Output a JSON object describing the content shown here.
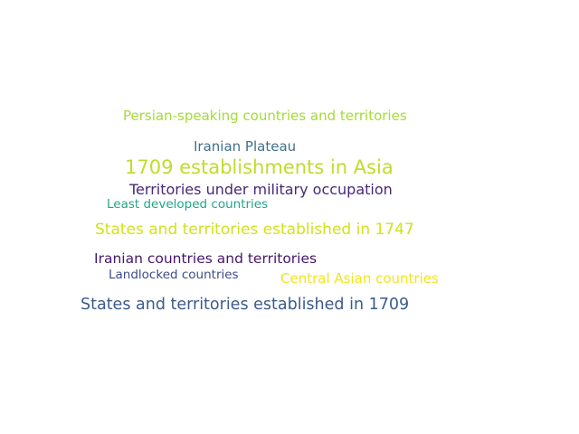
{
  "words": [
    {
      "text": "Persian-speaking countries and territories",
      "color": "#a5db36"
    },
    {
      "text": "Iranian Plateau",
      "color": "#3e6f8e"
    },
    {
      "text": "1709 establishments in Asia",
      "color": "#bfdd2b"
    },
    {
      "text": "Territories under military occupation",
      "color": "#482878"
    },
    {
      "text": "Least developed countries",
      "color": "#21a685"
    },
    {
      "text": "States and territories established in 1747",
      "color": "#d2e21b"
    },
    {
      "text": "Iranian countries and territories",
      "color": "#46166b"
    },
    {
      "text": "Landlocked countries",
      "color": "#3e4a89"
    },
    {
      "text": "Central Asian countries",
      "color": "#f1e51d"
    },
    {
      "text": "States and territories established in 1709",
      "color": "#3b5b8c"
    }
  ]
}
